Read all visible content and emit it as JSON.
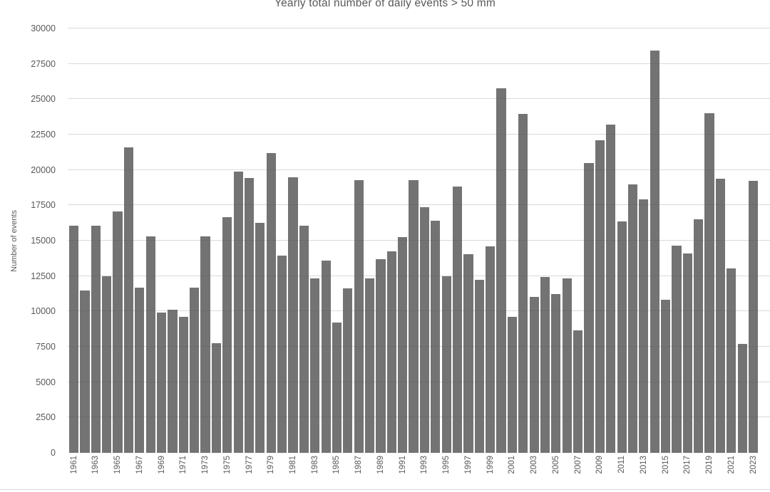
{
  "page": {
    "background_color": "#ffffff",
    "text_color": "#595959",
    "gridline_color": "#d9d9d9",
    "bar_color": "#757575",
    "bottom_border_color": "#d9dade"
  },
  "chart_data": {
    "type": "bar",
    "title": "Yearly total number of daily events > 50 mm",
    "xlabel": "",
    "ylabel": "Number of events",
    "ylim": [
      0,
      30000
    ],
    "ytick_step": 2500,
    "yticks": [
      0,
      2500,
      5000,
      7500,
      10000,
      12500,
      15000,
      17500,
      20000,
      22500,
      25000,
      27500,
      30000
    ],
    "xticks_shown": [
      "1961",
      "1963",
      "1965",
      "1967",
      "1969",
      "1971",
      "1973",
      "1975",
      "1977",
      "1979",
      "1981",
      "1983",
      "1985",
      "1987",
      "1989",
      "1991",
      "1993",
      "1995",
      "1997",
      "1999",
      "2001",
      "2003",
      "2005",
      "2007",
      "2009",
      "2011",
      "2013",
      "2015",
      "2017",
      "2019",
      "2021",
      "2023"
    ],
    "grid": true,
    "legend": false,
    "categories": [
      1961,
      1962,
      1963,
      1964,
      1965,
      1966,
      1967,
      1968,
      1969,
      1970,
      1971,
      1972,
      1973,
      1974,
      1975,
      1976,
      1977,
      1978,
      1979,
      1980,
      1981,
      1982,
      1983,
      1984,
      1985,
      1986,
      1987,
      1988,
      1989,
      1990,
      1991,
      1992,
      1993,
      1994,
      1995,
      1996,
      1997,
      1998,
      1999,
      2000,
      2001,
      2002,
      2003,
      2004,
      2005,
      2006,
      2007,
      2008,
      2009,
      2010,
      2011,
      2012,
      2013,
      2014,
      2015,
      2016,
      2017,
      2018,
      2019,
      2020,
      2021,
      2022,
      2023
    ],
    "values": [
      16050,
      11500,
      16050,
      12500,
      17050,
      21600,
      11700,
      15300,
      9900,
      10100,
      9600,
      11700,
      15300,
      7750,
      16650,
      19900,
      19450,
      16250,
      21200,
      13950,
      19500,
      16050,
      12350,
      13600,
      9200,
      11650,
      19300,
      12350,
      13700,
      14250,
      15250,
      19300,
      17350,
      16400,
      12500,
      18850,
      14050,
      12250,
      14600,
      25750,
      9600,
      23950,
      11000,
      12450,
      11250,
      12350,
      8650,
      20500,
      22100,
      23200,
      16350,
      19000,
      17900,
      28450,
      10800,
      14650,
      14100,
      16500,
      24000,
      19400,
      13050,
      7700,
      19250
    ]
  }
}
